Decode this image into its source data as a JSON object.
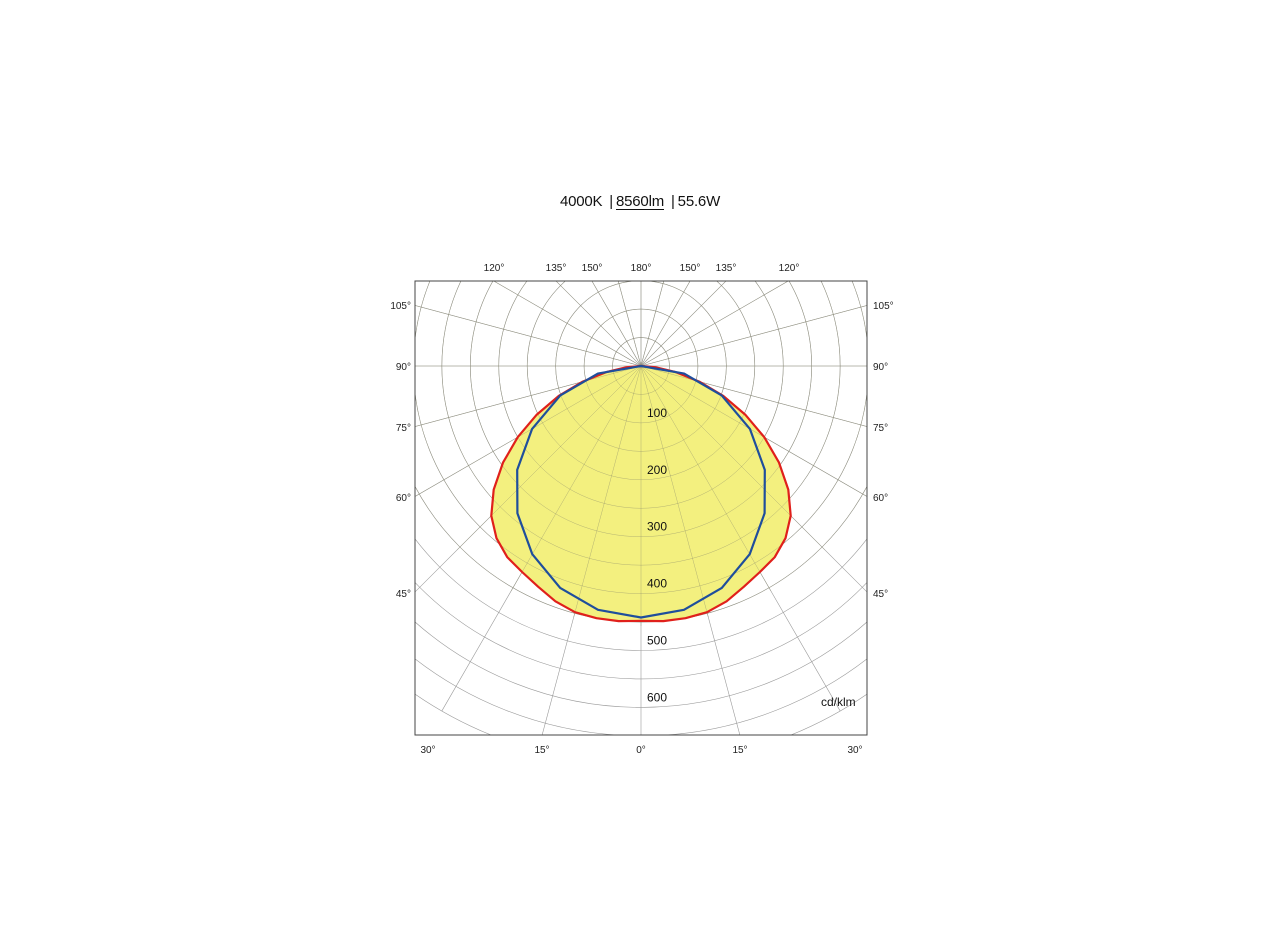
{
  "header": {
    "cct": "4000K",
    "separator": "|",
    "flux": "8560lm",
    "power": "55.6W"
  },
  "chart_data": {
    "type": "polar",
    "unit": "cd/klm",
    "radial_ticks": [
      "100",
      "200",
      "300",
      "400",
      "500",
      "600"
    ],
    "radial_values": [
      100,
      200,
      300,
      400,
      500,
      600
    ],
    "radial_max": 600,
    "top_angle_labels": [
      "120°",
      "135°",
      "150°",
      "180°",
      "150°",
      "135°",
      "120°"
    ],
    "side_angle_labels": [
      "105°",
      "90°",
      "75°",
      "60°",
      "45°"
    ],
    "bottom_angle_labels": [
      "30°",
      "15°",
      "0°",
      "15°",
      "30°"
    ],
    "colors": {
      "fill": "#f3f07f",
      "series_a": "#e0201b",
      "series_b": "#1f4e9c",
      "grid": "#9a9a9a",
      "frame": "#444444"
    },
    "series": [
      {
        "color": "#e0201b",
        "angles": [
          0,
          5,
          10,
          15,
          20,
          25,
          30,
          35,
          40,
          45,
          50,
          55,
          60,
          65,
          70,
          75,
          80,
          85,
          90
        ],
        "values": [
          448,
          450,
          450,
          448,
          440,
          428,
          418,
          410,
          395,
          372,
          338,
          296,
          250,
          202,
          154,
          106,
          62,
          25,
          0
        ]
      },
      {
        "color": "#1f4e9c",
        "angles": [
          0,
          10,
          20,
          30,
          40,
          50,
          60,
          70,
          80,
          90
        ],
        "values": [
          442,
          435,
          415,
          382,
          338,
          284,
          221,
          151,
          77,
          0
        ]
      }
    ]
  }
}
